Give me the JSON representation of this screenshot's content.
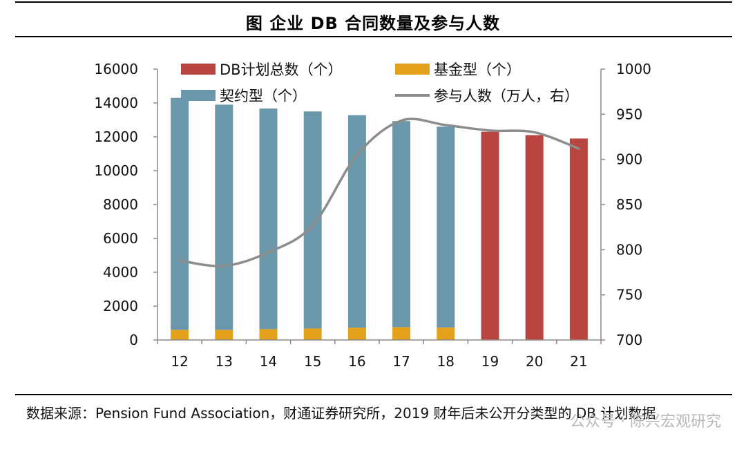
{
  "figure": {
    "title": "图  企业 DB 合同数量及参与人数",
    "source": "数据来源：Pension Fund Association，财通证券研究所，2019 财年后未公开分类型的 DB 计划数据",
    "watermark": "公众号 · 陈兴宏观研究"
  },
  "colors": {
    "total": "#b84540",
    "fund": "#e4a11b",
    "contract": "#6b97aa",
    "participants": "#8c8c8c"
  },
  "chart_data": {
    "type": "bar",
    "categories": [
      "12",
      "13",
      "14",
      "15",
      "16",
      "17",
      "18",
      "19",
      "20",
      "21"
    ],
    "series": [
      {
        "name": "DB计划总数（个）",
        "type": "bar",
        "color": "#b84540",
        "values": [
          null,
          null,
          null,
          null,
          null,
          null,
          null,
          12300,
          12100,
          11900
        ]
      },
      {
        "name": "基金型（个）",
        "type": "bar",
        "color": "#e4a11b",
        "values": [
          600,
          600,
          640,
          680,
          730,
          760,
          740,
          null,
          null,
          null
        ]
      },
      {
        "name": "契约型（个）",
        "type": "bar",
        "color": "#6b97aa",
        "values": [
          13700,
          13300,
          13030,
          12820,
          12550,
          12170,
          11860,
          null,
          null,
          null
        ]
      },
      {
        "name": "参与人数（万人，右）",
        "type": "line",
        "axis": "right",
        "color": "#8c8c8c",
        "values": [
          788,
          782,
          797,
          827,
          905,
          943,
          938,
          932,
          930,
          912
        ]
      }
    ],
    "left_axis": {
      "min": 0,
      "max": 16000,
      "ticks": [
        0,
        2000,
        4000,
        6000,
        8000,
        10000,
        12000,
        14000,
        16000
      ]
    },
    "right_axis": {
      "min": 700,
      "max": 1000,
      "ticks": [
        700,
        750,
        800,
        850,
        900,
        950,
        1000
      ]
    },
    "legend": [
      {
        "label": "DB计划总数（个）",
        "kind": "bar",
        "color": "#b84540"
      },
      {
        "label": "基金型（个）",
        "kind": "bar",
        "color": "#e4a11b"
      },
      {
        "label": "契约型（个）",
        "kind": "bar",
        "color": "#6b97aa"
      },
      {
        "label": "参与人数（万人，右）",
        "kind": "line",
        "color": "#8c8c8c"
      }
    ]
  }
}
